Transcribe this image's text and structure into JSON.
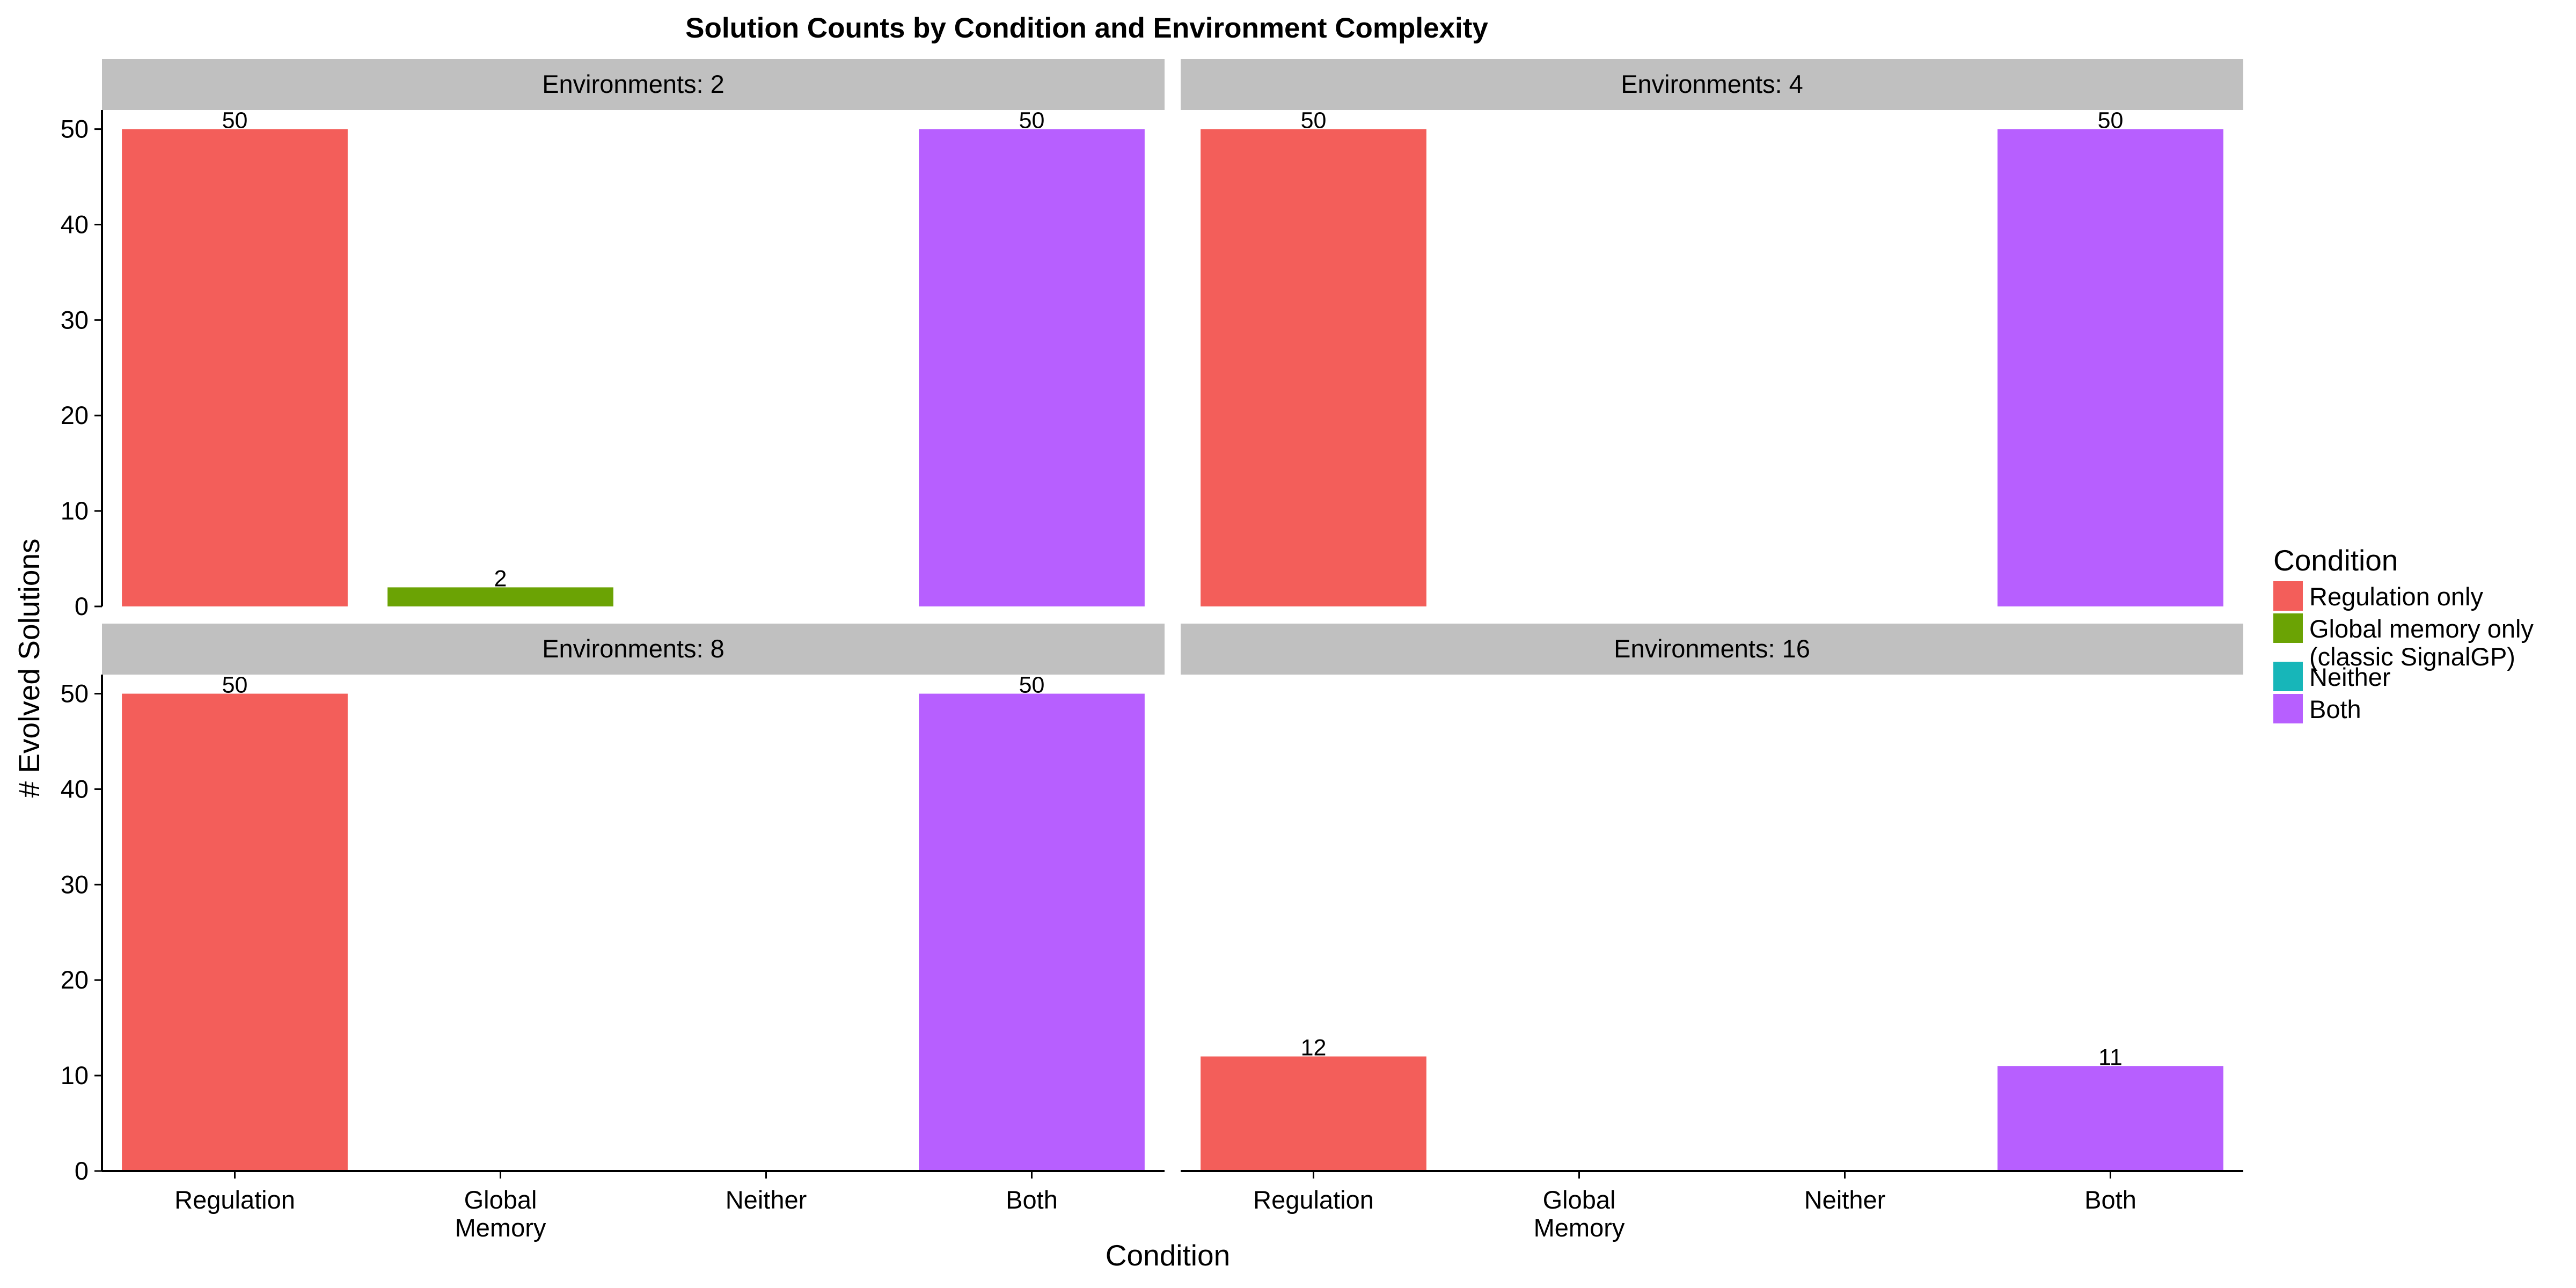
{
  "chart_data": {
    "type": "bar",
    "title": "Solution Counts by Condition and Environment Complexity",
    "xlabel": "Condition",
    "ylabel": "# Evolved Solutions",
    "ylim": [
      0,
      52
    ],
    "yticks": [
      0,
      10,
      20,
      30,
      40,
      50
    ],
    "categories": [
      "Regulation",
      "Global\nMemory",
      "Neither",
      "Both"
    ],
    "legend": {
      "title": "Condition",
      "position": "right",
      "entries": [
        {
          "label": "Regulation only",
          "color": "#F35E5A"
        },
        {
          "label": "Global memory only\n(classic SignalGP)",
          "color": "#6BA304"
        },
        {
          "label": "Neither",
          "color": "#17B6B9"
        },
        {
          "label": "Both",
          "color": "#B75FFF"
        }
      ]
    },
    "facets": [
      {
        "strip": "Environments: 2",
        "values": [
          50,
          2,
          0,
          50
        ],
        "labels": [
          "50",
          "2",
          "",
          "50"
        ]
      },
      {
        "strip": "Environments: 4",
        "values": [
          50,
          0,
          0,
          50
        ],
        "labels": [
          "50",
          "",
          "",
          "50"
        ]
      },
      {
        "strip": "Environments: 8",
        "values": [
          50,
          0,
          0,
          50
        ],
        "labels": [
          "50",
          "",
          "",
          "50"
        ]
      },
      {
        "strip": "Environments: 16",
        "values": [
          12,
          0,
          0,
          11
        ],
        "labels": [
          "12",
          "",
          "",
          "11"
        ]
      }
    ]
  }
}
